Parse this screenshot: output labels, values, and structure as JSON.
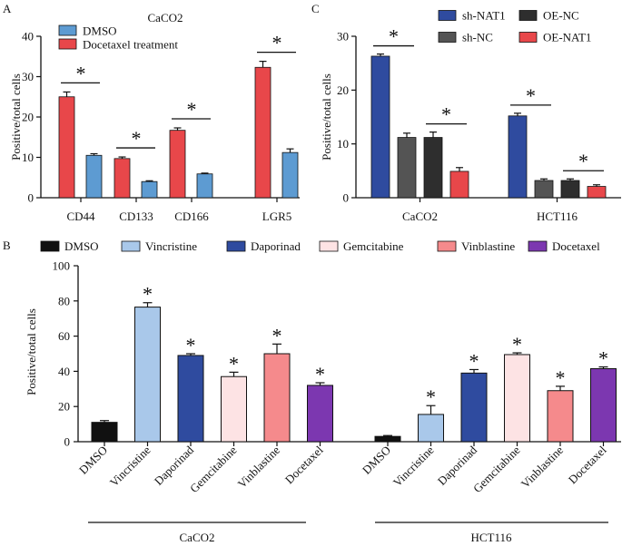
{
  "colors": {
    "red": "#e8474a",
    "blue": "#5d9bd2",
    "navy": "#2f4b9f",
    "darkgrey": "#545454",
    "charcoal": "#2e2e2e",
    "black": "#111111",
    "lightblue": "#a9c8ea",
    "blush": "#fde3e4",
    "salmon": "#f58a8c",
    "purple": "#7c37b0",
    "axis": "#111111"
  },
  "chart_data": [
    {
      "panel_letter": "A",
      "type": "bar",
      "title": "CaCO2",
      "ylabel": "Positive/total cells",
      "ylim": [
        0,
        40
      ],
      "yticks": [
        "0",
        "10",
        "20",
        "30",
        "40"
      ],
      "categories": [
        "CD44",
        "CD133",
        "CD166",
        "LGR5"
      ],
      "series": [
        {
          "name": "Docetaxel treatment",
          "color": "#e8474a",
          "values": [
            25.0,
            9.7,
            16.7,
            32.3
          ],
          "errors": [
            1.2,
            0.4,
            0.6,
            1.5
          ]
        },
        {
          "name": "DMSO",
          "color": "#5d9bd2",
          "values": [
            10.5,
            4.0,
            5.9,
            11.2
          ],
          "errors": [
            0.4,
            0.2,
            0.2,
            0.9
          ]
        }
      ],
      "legend": [
        {
          "label": "DMSO",
          "color": "#5d9bd2"
        },
        {
          "label": "Docetaxel treatment",
          "color": "#e8474a"
        }
      ],
      "significance": [
        "*",
        "*",
        "*",
        "*"
      ]
    },
    {
      "panel_letter": "C",
      "type": "bar",
      "ylabel": "Positive/total cells",
      "ylim": [
        0,
        30
      ],
      "yticks": [
        "0",
        "10",
        "20",
        "30"
      ],
      "categories": [
        "CaCO2",
        "HCT116"
      ],
      "series": [
        {
          "name": "sh-NAT1",
          "color": "#2f4b9f",
          "values": [
            26.3,
            15.2
          ],
          "errors": [
            0.4,
            0.5
          ]
        },
        {
          "name": "sh-NC",
          "color": "#545454",
          "values": [
            11.2,
            3.2
          ],
          "errors": [
            0.8,
            0.3
          ]
        },
        {
          "name": "OE-NC",
          "color": "#2e2e2e",
          "values": [
            11.2,
            3.2
          ],
          "errors": [
            1.0,
            0.3
          ]
        },
        {
          "name": "OE-NAT1",
          "color": "#e8474a",
          "values": [
            4.9,
            2.1
          ],
          "errors": [
            0.7,
            0.3
          ]
        }
      ],
      "legend": [
        {
          "label": "sh-NAT1",
          "color": "#2f4b9f"
        },
        {
          "label": "OE-NC",
          "color": "#2e2e2e"
        },
        {
          "label": "sh-NC",
          "color": "#545454"
        },
        {
          "label": "OE-NAT1",
          "color": "#e8474a"
        }
      ],
      "significance_pairs": [
        "*",
        "*",
        "*",
        "*"
      ]
    },
    {
      "panel_letter": "B",
      "type": "bar",
      "ylabel": "Positive/total cells",
      "ylim": [
        0,
        100
      ],
      "yticks": [
        "0",
        "20",
        "40",
        "60",
        "80",
        "100"
      ],
      "groups": [
        "CaCO2",
        "HCT116"
      ],
      "categories": [
        "DMSO",
        "Vincristine",
        "Daporinad",
        "Gemcitabine",
        "Vinblastine",
        "Docetaxel"
      ],
      "colors": [
        "#111111",
        "#a9c8ea",
        "#2f4b9f",
        "#fde3e4",
        "#f58a8c",
        "#7c37b0"
      ],
      "values": [
        [
          11.0,
          76.5,
          49.0,
          37.0,
          50.0,
          32.0
        ],
        [
          3.0,
          15.5,
          39.0,
          49.5,
          29.0,
          41.5
        ]
      ],
      "errors": [
        [
          1.0,
          2.5,
          1.0,
          2.5,
          5.5,
          1.5
        ],
        [
          0.5,
          5.0,
          2.0,
          1.0,
          2.5,
          1.0
        ]
      ],
      "significance": [
        "",
        "*",
        "*",
        "*",
        "*",
        "*"
      ],
      "legend": [
        "DMSO",
        "Vincristine",
        "Daporinad",
        "Gemcitabine",
        "Vinblastine",
        "Docetaxel"
      ]
    }
  ]
}
